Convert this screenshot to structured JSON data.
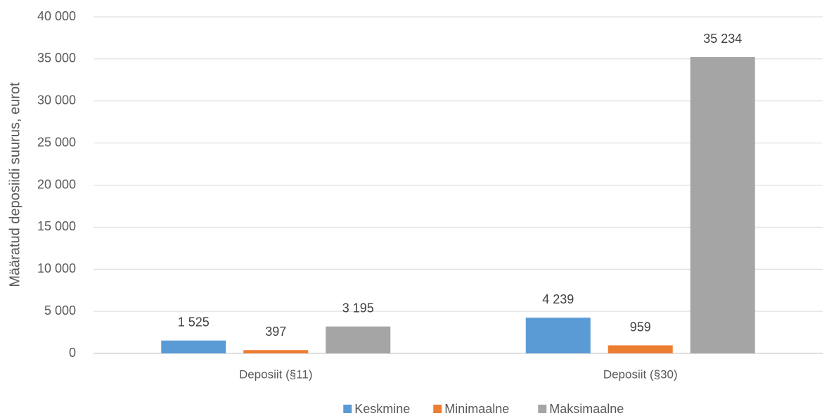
{
  "chart_data": {
    "type": "bar",
    "y_label": "Määratud deposiidi suurus, eurot",
    "categories": [
      "Deposiit (§11)",
      "Deposiit (§30)"
    ],
    "series": [
      {
        "name": "Keskmine",
        "color": "#5b9bd5",
        "values": [
          1525,
          4239
        ],
        "value_labels": [
          "1 525",
          "4 239"
        ]
      },
      {
        "name": "Minimaalne",
        "color": "#ed7d31",
        "values": [
          397,
          959
        ],
        "value_labels": [
          "397",
          "959"
        ]
      },
      {
        "name": "Maksimaalne",
        "color": "#a5a5a5",
        "values": [
          3195,
          35234
        ],
        "value_labels": [
          "3 195",
          "35 234"
        ]
      }
    ],
    "ylim": [
      0,
      40000
    ],
    "yticks": [
      0,
      {
        "value": 5000,
        "label": "5 000"
      },
      {
        "value": 10000,
        "label": "10 000"
      },
      {
        "value": 15000,
        "label": "15 000"
      },
      {
        "value": 20000,
        "label": "20 000"
      },
      {
        "value": 25000,
        "label": "25 000"
      },
      {
        "value": 30000,
        "label": "30 000"
      },
      {
        "value": 35000,
        "label": "35 000"
      },
      {
        "value": 40000,
        "label": "40 000"
      }
    ],
    "grid": true,
    "legend": "bottom"
  }
}
